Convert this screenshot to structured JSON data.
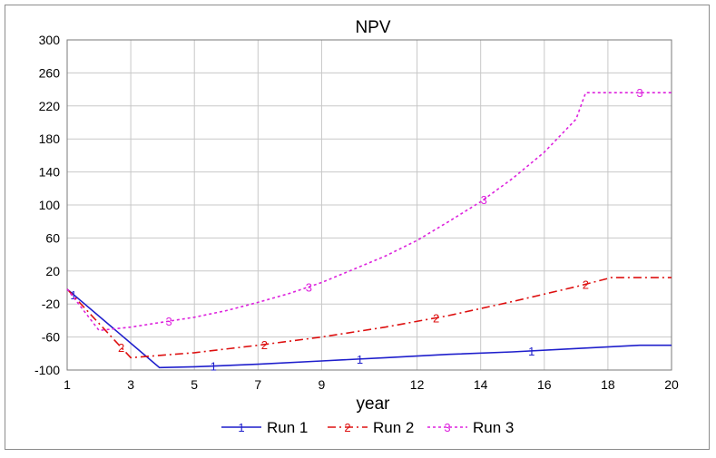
{
  "chart_data": {
    "type": "line",
    "title": "NPV",
    "xlabel": "year",
    "ylabel": "",
    "xlim": [
      1,
      20
    ],
    "ylim": [
      -100,
      300
    ],
    "xticks": [
      1,
      3,
      5,
      7,
      9,
      12,
      14,
      16,
      18,
      20
    ],
    "yticks": [
      300,
      260,
      220,
      180,
      140,
      100,
      60,
      20,
      -20,
      -60,
      -100
    ],
    "grid": true,
    "legend_position": "bottom",
    "series": [
      {
        "name": "Run 1",
        "marker": "1",
        "color": "#1f1fcc",
        "style": "solid",
        "x": [
          1,
          3.9,
          5,
          7,
          9,
          11,
          13,
          15,
          17,
          19,
          20
        ],
        "y": [
          -2,
          -97,
          -96,
          -93,
          -89,
          -85,
          -81,
          -78,
          -74,
          -70,
          -70
        ],
        "marker_x": [
          1.2,
          5.6,
          10.2,
          15.6
        ]
      },
      {
        "name": "Run 2",
        "marker": "2",
        "color": "#dd1010",
        "style": "dashdot",
        "x": [
          1,
          3,
          5,
          7,
          9,
          11,
          13,
          15,
          17,
          18.1,
          20
        ],
        "y": [
          -2,
          -85,
          -79,
          -70,
          -60,
          -48,
          -34,
          -17,
          1,
          12,
          12
        ],
        "marker_x": [
          2.7,
          7.2,
          12.6,
          17.3
        ]
      },
      {
        "name": "Run 3",
        "marker": "3",
        "color": "#dd22dd",
        "style": "dotted",
        "x": [
          1,
          2,
          3,
          4,
          5,
          6,
          7,
          8,
          9,
          10,
          11,
          12,
          13,
          14,
          15,
          16,
          17,
          17.3,
          18,
          19,
          20
        ],
        "y": [
          -2,
          -52,
          -48,
          -42,
          -36,
          -28,
          -18,
          -7,
          6,
          22,
          38,
          57,
          80,
          104,
          132,
          164,
          204,
          236,
          236,
          236,
          236
        ],
        "marker_x": [
          4.2,
          8.6,
          14.1,
          19.0
        ]
      }
    ]
  }
}
